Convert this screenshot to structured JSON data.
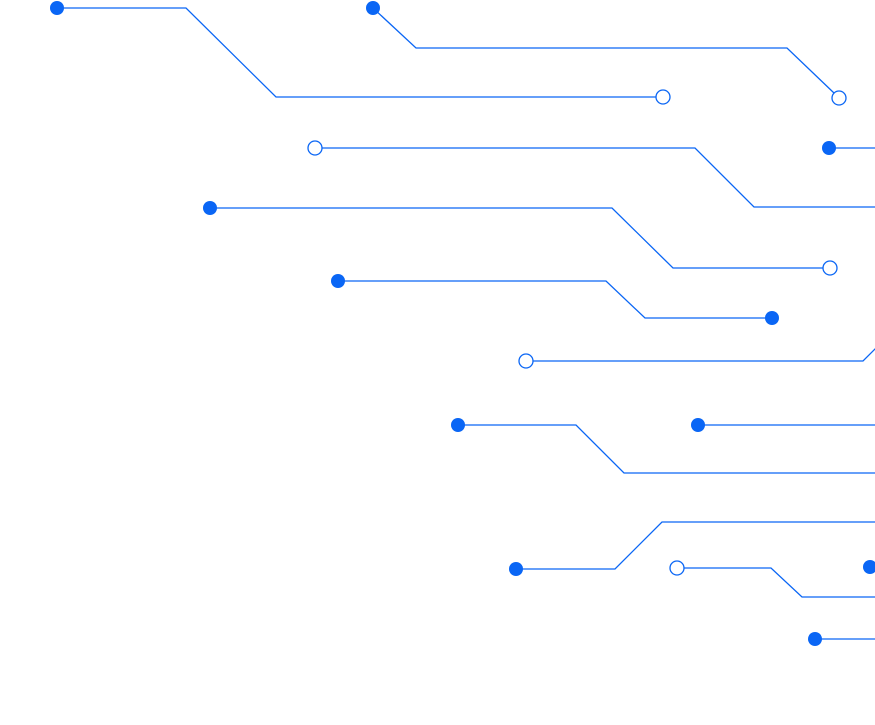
{
  "graphic": {
    "type": "circuit-traces-decoration",
    "colors": {
      "trace": "#0a66f5",
      "background": "#ffffff"
    }
  }
}
